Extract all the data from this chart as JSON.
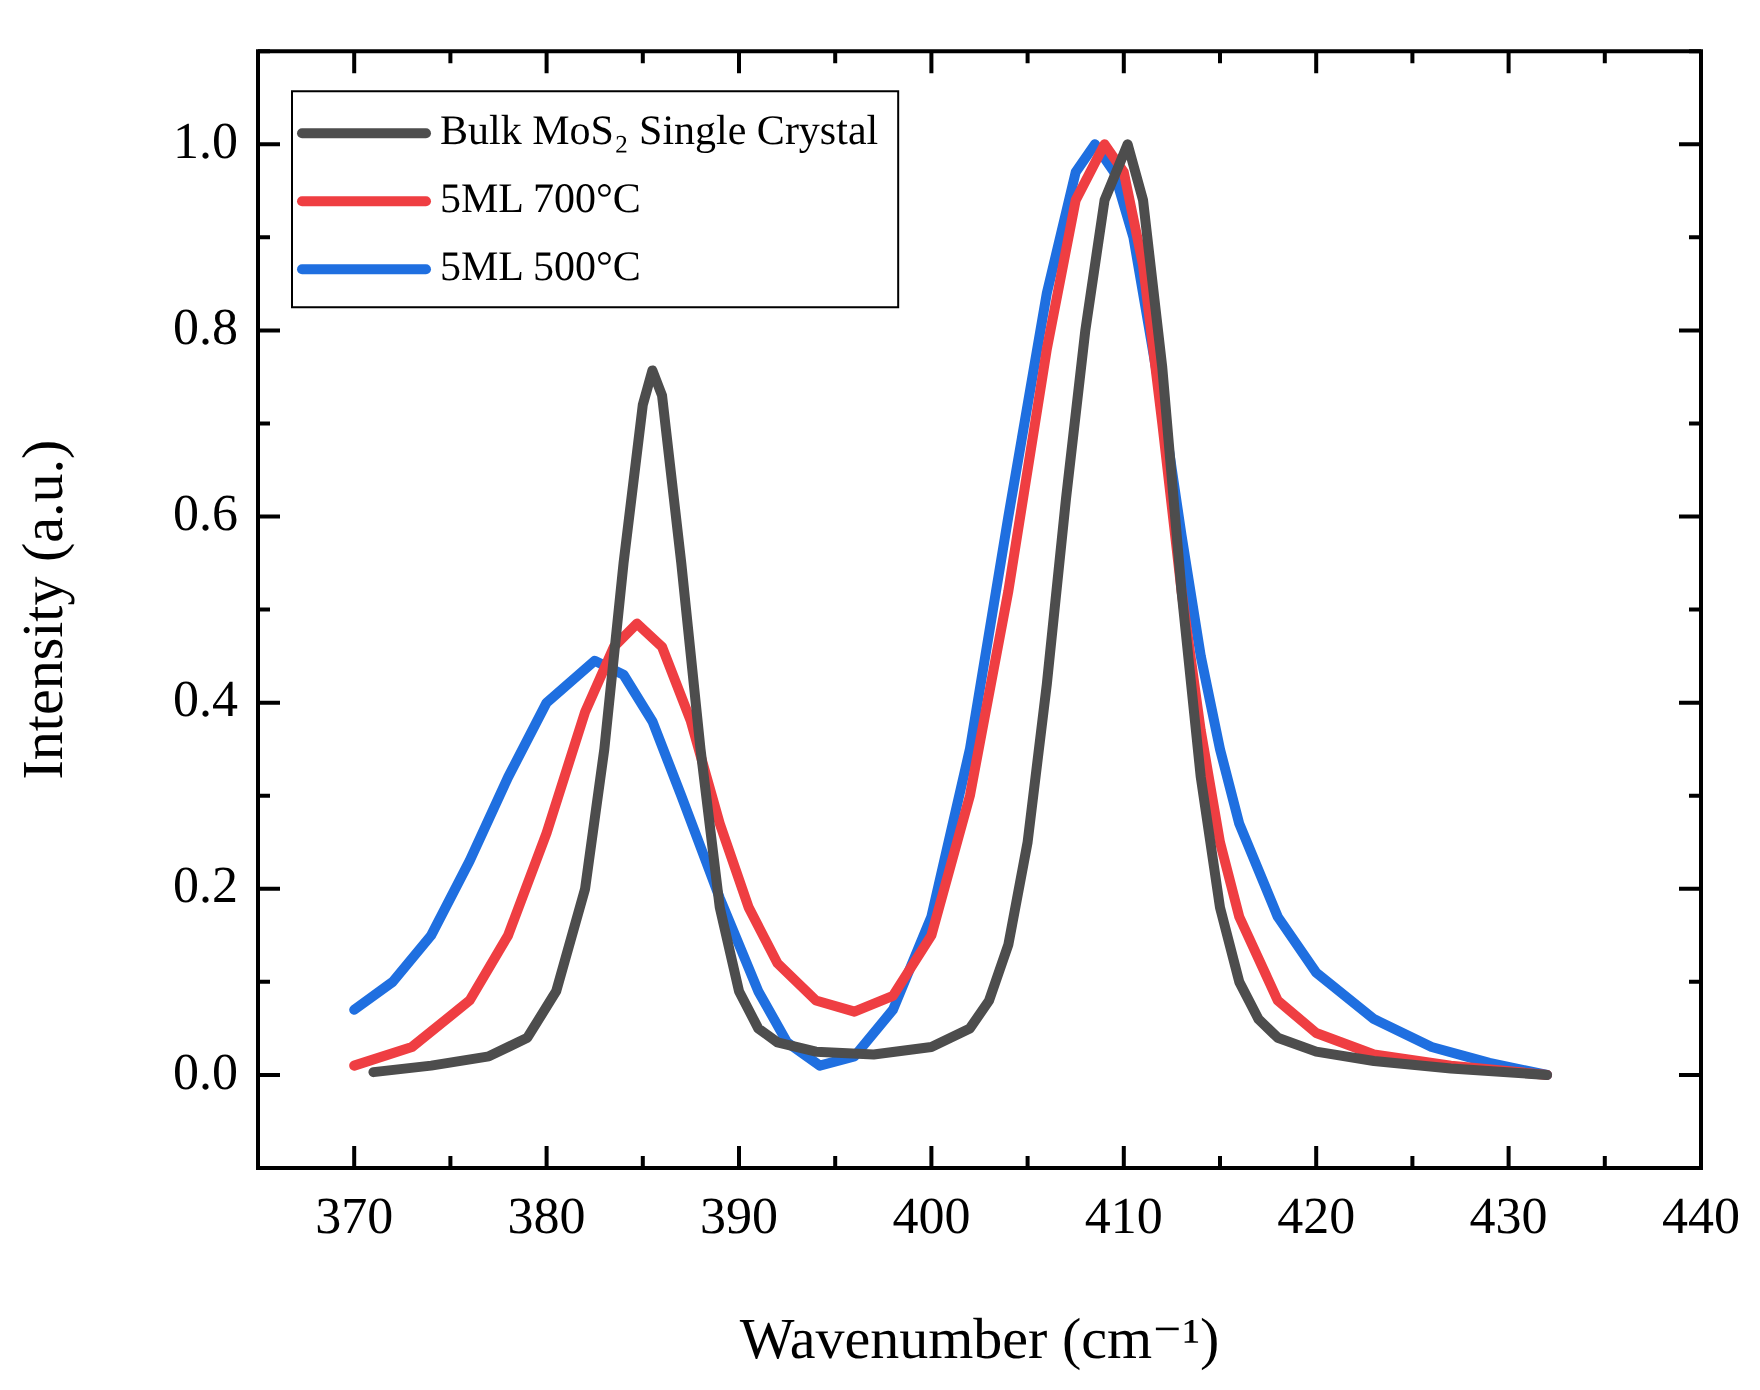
{
  "chart_data": {
    "type": "line",
    "xlabel": "Wavenumber (cm⁻¹)",
    "ylabel": "Intensity (a.u.)",
    "xlim": [
      365,
      440
    ],
    "ylim": [
      -0.1,
      1.1
    ],
    "xticks": [
      {
        "value": 365,
        "label": null
      },
      370,
      {
        "value": 375,
        "label": null
      },
      380,
      {
        "value": 385,
        "label": null
      },
      390,
      {
        "value": 395,
        "label": null
      },
      400,
      {
        "value": 405,
        "label": null
      },
      410,
      {
        "value": 415,
        "label": null
      },
      420,
      {
        "value": 425,
        "label": null
      },
      430,
      {
        "value": 435,
        "label": null
      },
      440
    ],
    "yticks": [
      {
        "value": -0.1,
        "label": null
      },
      {
        "value": 0,
        "label": "0.0"
      },
      {
        "value": 0.1,
        "label": null
      },
      {
        "value": 0.2,
        "label": "0.2"
      },
      {
        "value": 0.3,
        "label": null
      },
      {
        "value": 0.4,
        "label": "0.4"
      },
      {
        "value": 0.5,
        "label": null
      },
      {
        "value": 0.6,
        "label": "0.6"
      },
      {
        "value": 0.7,
        "label": null
      },
      {
        "value": 0.8,
        "label": "0.8"
      },
      {
        "value": 0.9,
        "label": null
      },
      {
        "value": 1,
        "label": "1.0"
      },
      {
        "value": 1.1,
        "label": null
      }
    ],
    "grid": false,
    "legend": "top left",
    "marker": "none",
    "line_style": "solid",
    "series": [
      {
        "name": "Bulk MoS₂ Single Crystal",
        "color": "#4d4d4d",
        "x": [
          371,
          374,
          377,
          379,
          380.5,
          382,
          383,
          384,
          385,
          385.5,
          386,
          387,
          388,
          389,
          390,
          391,
          392,
          394,
          397,
          400,
          402,
          403,
          404,
          405,
          406,
          407,
          408,
          409,
          410.2,
          411,
          412,
          413,
          414,
          415,
          416,
          417,
          418,
          420,
          423,
          427,
          432
        ],
        "values": [
          0.003,
          0.01,
          0.02,
          0.04,
          0.09,
          0.2,
          0.35,
          0.55,
          0.72,
          0.757,
          0.73,
          0.55,
          0.35,
          0.18,
          0.09,
          0.05,
          0.035,
          0.025,
          0.022,
          0.03,
          0.05,
          0.08,
          0.14,
          0.25,
          0.42,
          0.62,
          0.8,
          0.94,
          1.0,
          0.94,
          0.76,
          0.52,
          0.32,
          0.18,
          0.1,
          0.06,
          0.04,
          0.025,
          0.015,
          0.007,
          0
        ]
      },
      {
        "name": "5ML 700°C",
        "color": "#ef3e42",
        "x": [
          370,
          373,
          376,
          378,
          380,
          382,
          383.5,
          384.7,
          386,
          387.5,
          389,
          390.5,
          392,
          394,
          396,
          398,
          400,
          402,
          404,
          406,
          407.5,
          409,
          410,
          411,
          412,
          413,
          414,
          415,
          416,
          418,
          420,
          423,
          427,
          432
        ],
        "values": [
          0.01,
          0.03,
          0.08,
          0.15,
          0.26,
          0.39,
          0.46,
          0.485,
          0.46,
          0.38,
          0.27,
          0.18,
          0.12,
          0.08,
          0.068,
          0.085,
          0.15,
          0.3,
          0.52,
          0.78,
          0.94,
          1.0,
          0.97,
          0.87,
          0.7,
          0.52,
          0.37,
          0.25,
          0.17,
          0.08,
          0.045,
          0.022,
          0.01,
          0
        ]
      },
      {
        "name": "5ML 500°C",
        "color": "#1f6fe0",
        "x": [
          370,
          372,
          374,
          376,
          378,
          380,
          382.5,
          384,
          385.5,
          387,
          389,
          391,
          392.5,
          394.2,
          396,
          398,
          400,
          402,
          404,
          406,
          407.5,
          408.5,
          409.5,
          410.5,
          412,
          413,
          414,
          415,
          416,
          418,
          420,
          423,
          426,
          429,
          432
        ],
        "values": [
          0.07,
          0.1,
          0.15,
          0.23,
          0.32,
          0.4,
          0.445,
          0.43,
          0.38,
          0.3,
          0.19,
          0.09,
          0.035,
          0.01,
          0.02,
          0.07,
          0.17,
          0.35,
          0.6,
          0.84,
          0.97,
          1.0,
          0.97,
          0.9,
          0.72,
          0.58,
          0.45,
          0.35,
          0.27,
          0.17,
          0.11,
          0.06,
          0.03,
          0.013,
          0
        ]
      }
    ]
  }
}
